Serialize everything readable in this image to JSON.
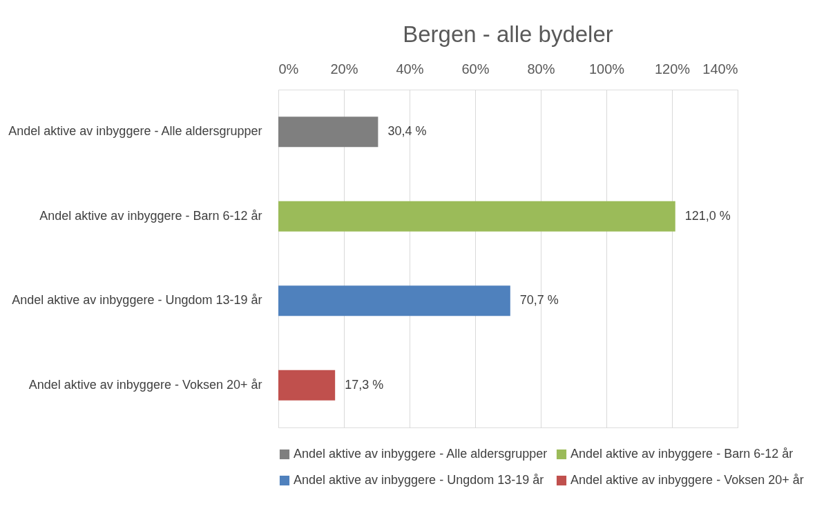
{
  "chart_data": {
    "type": "bar",
    "orientation": "horizontal",
    "stacked": true,
    "title": "Bergen - alle bydeler",
    "categories": [
      "Andel aktive av inbyggere - Alle aldersgrupper",
      "Andel aktive av inbyggere - Barn 6-12 år",
      "Andel aktive av inbyggere - Ungdom 13-19 år",
      "Andel aktive av inbyggere - Voksen 20+ år"
    ],
    "series": [
      {
        "name": "Andel aktive av inbyggere - Alle aldersgrupper",
        "color": "#7f7f7f",
        "values": [
          30.4,
          null,
          null,
          null
        ],
        "value_labels": [
          "30,4 %",
          null,
          null,
          null
        ]
      },
      {
        "name": "Andel aktive av inbyggere - Barn 6-12 år",
        "color": "#9bbb59",
        "values": [
          null,
          121.0,
          null,
          null
        ],
        "value_labels": [
          null,
          "121,0 %",
          null,
          null
        ]
      },
      {
        "name": "Andel aktive av inbyggere - Ungdom 13-19 år",
        "color": "#4f81bd",
        "values": [
          null,
          null,
          70.7,
          null
        ],
        "value_labels": [
          null,
          null,
          "70,7 %",
          null
        ]
      },
      {
        "name": "Andel aktive av inbyggere - Voksen 20+ år",
        "color": "#c0504d",
        "values": [
          null,
          null,
          null,
          17.3
        ],
        "value_labels": [
          null,
          null,
          null,
          "17,3 %"
        ]
      }
    ],
    "xlim": [
      0,
      140
    ],
    "xticks": [
      {
        "value": 0,
        "label": "0%"
      },
      {
        "value": 20,
        "label": "20%"
      },
      {
        "value": 40,
        "label": "40%"
      },
      {
        "value": 60,
        "label": "60%"
      },
      {
        "value": 80,
        "label": "80%"
      },
      {
        "value": 100,
        "label": "100%"
      },
      {
        "value": 120,
        "label": "120%"
      },
      {
        "value": 140,
        "label": "140%"
      }
    ],
    "grid": "x",
    "legend": "bottom"
  }
}
